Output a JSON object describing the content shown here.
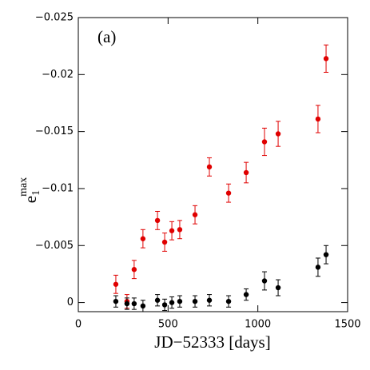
{
  "chart_data": {
    "type": "scatter",
    "annotation": "(a)",
    "xlabel": "JD−52333 [days]",
    "ylabel": {
      "base": "e",
      "sub": "1",
      "sup": "max"
    },
    "xlim": [
      0,
      1500
    ],
    "xticks": [
      0,
      500,
      1000,
      1500
    ],
    "ylim": [
      0.0008,
      -0.025
    ],
    "yticks": [
      0,
      {
        "value": -0.005,
        "label": "−0.005"
      },
      {
        "value": -0.01,
        "label": "−0.01"
      },
      {
        "value": -0.015,
        "label": "−0.015"
      },
      {
        "value": -0.02,
        "label": "−0.02"
      },
      {
        "value": -0.025,
        "label": "−0.025"
      }
    ],
    "series": [
      {
        "color": "#e00000",
        "x": [
          209,
          271,
          311,
          360,
          441,
          481,
          521,
          565,
          650,
          730,
          837,
          935,
          1037,
          1113,
          1335,
          1380
        ],
        "values": [
          -0.0016,
          -0.0001,
          -0.0029,
          -0.0056,
          -0.0072,
          -0.0053,
          -0.0063,
          -0.0064,
          -0.0077,
          -0.0119,
          -0.0096,
          -0.0114,
          -0.0141,
          -0.0148,
          -0.0161,
          -0.0214
        ],
        "errors": [
          0.0008,
          0.0006,
          0.0008,
          0.0008,
          0.0008,
          0.0008,
          0.0008,
          0.0008,
          0.0008,
          0.0008,
          0.0008,
          0.0009,
          0.0012,
          0.0011,
          0.0012,
          0.0012
        ]
      },
      {
        "color": "#000000",
        "x": [
          209,
          271,
          311,
          360,
          441,
          481,
          521,
          565,
          650,
          730,
          837,
          935,
          1037,
          1113,
          1335,
          1380
        ],
        "values": [
          -0.0001,
          0.0001,
          0.0001,
          0.0003,
          -0.0002,
          0.0002,
          0,
          -0.0001,
          -0.0001,
          -0.0002,
          -0.0001,
          -0.0007,
          -0.0019,
          -0.0013,
          -0.0031,
          -0.0042
        ],
        "errors": [
          0.0005,
          0.0005,
          0.0005,
          0.0005,
          0.0005,
          0.0005,
          0.0005,
          0.0005,
          0.0005,
          0.0005,
          0.0005,
          0.0005,
          0.0008,
          0.0007,
          0.0008,
          0.0008
        ]
      }
    ]
  }
}
